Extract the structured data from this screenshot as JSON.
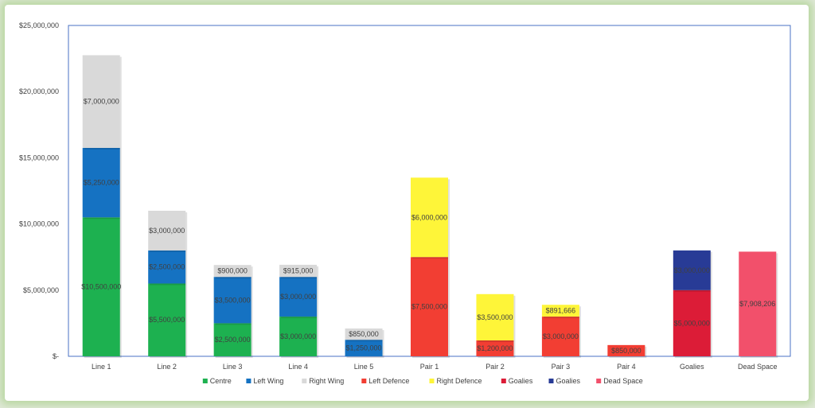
{
  "chart_data": {
    "type": "bar",
    "stacked": true,
    "categories": [
      "Line 1",
      "Line 2",
      "Line 3",
      "Line 4",
      "Line 5",
      "Pair 1",
      "Pair 2",
      "Pair 3",
      "Pair 4",
      "Goalies",
      "Dead Space"
    ],
    "series": [
      {
        "name": "Centre",
        "color": "#1db150",
        "values": [
          10500000,
          5500000,
          2500000,
          3000000,
          null,
          null,
          null,
          null,
          null,
          null,
          null
        ],
        "labels": [
          "$10,500,000",
          "$5,500,000",
          "$2,500,000",
          "$3,000,000",
          null,
          null,
          null,
          null,
          null,
          null,
          null
        ]
      },
      {
        "name": "Left Wing",
        "color": "#1572c2",
        "values": [
          5250000,
          2500000,
          3500000,
          3000000,
          1250000,
          null,
          null,
          null,
          null,
          null,
          null
        ],
        "labels": [
          "$5,250,000",
          "$2,500,000",
          "$3,500,000",
          "$3,000,000",
          "$1,250,000",
          null,
          null,
          null,
          null,
          null,
          null
        ]
      },
      {
        "name": "Right Wing",
        "color": "#d9d9d9",
        "values": [
          7000000,
          3000000,
          900000,
          915000,
          850000,
          null,
          null,
          null,
          null,
          null,
          null
        ],
        "labels": [
          "$7,000,000",
          "$3,000,000",
          "$900,000",
          "$915,000",
          "$850,000",
          null,
          null,
          null,
          null,
          null,
          null
        ]
      },
      {
        "name": "Left Defence",
        "color": "#f23e33",
        "values": [
          null,
          null,
          null,
          null,
          null,
          7500000,
          1200000,
          3000000,
          850000,
          null,
          null
        ],
        "labels": [
          null,
          null,
          null,
          null,
          null,
          "$7,500,000",
          "$1,200,000",
          "$3,000,000",
          "$850,000",
          null,
          null
        ]
      },
      {
        "name": "Right Defence",
        "color": "#fef539",
        "values": [
          null,
          null,
          null,
          null,
          null,
          6000000,
          3500000,
          891666,
          null,
          null,
          null
        ],
        "labels": [
          null,
          null,
          null,
          null,
          null,
          "$6,000,000",
          "$3,500,000",
          "$891,666",
          null,
          null,
          null
        ]
      },
      {
        "name": "Goalies",
        "color": "#dc1c37",
        "values": [
          null,
          null,
          null,
          null,
          null,
          null,
          null,
          null,
          null,
          5000000,
          null
        ],
        "labels": [
          null,
          null,
          null,
          null,
          null,
          null,
          null,
          null,
          null,
          "$5,000,000",
          null
        ]
      },
      {
        "name": "Goalies",
        "color": "#283b96",
        "values": [
          null,
          null,
          null,
          null,
          null,
          null,
          null,
          null,
          null,
          3000000,
          null
        ],
        "labels": [
          null,
          null,
          null,
          null,
          null,
          null,
          null,
          null,
          null,
          "$3,000,000",
          null
        ]
      },
      {
        "name": "Dead Space",
        "color": "#f2506b",
        "values": [
          null,
          null,
          null,
          null,
          null,
          null,
          null,
          null,
          null,
          null,
          7908206
        ],
        "labels": [
          null,
          null,
          null,
          null,
          null,
          null,
          null,
          null,
          null,
          null,
          "$7,908,206"
        ]
      }
    ],
    "ylim": [
      0,
      25000000
    ],
    "yticks": [
      0,
      5000000,
      10000000,
      15000000,
      20000000,
      25000000
    ],
    "ytick_labels": [
      "$-",
      "$5,000,000",
      "$10,000,000",
      "$15,000,000",
      "$20,000,000",
      "$25,000,000"
    ],
    "title": "",
    "xlabel": "",
    "ylabel": "",
    "grid": false,
    "legend_position": "bottom",
    "plot_border_color": "#4a72c4"
  }
}
